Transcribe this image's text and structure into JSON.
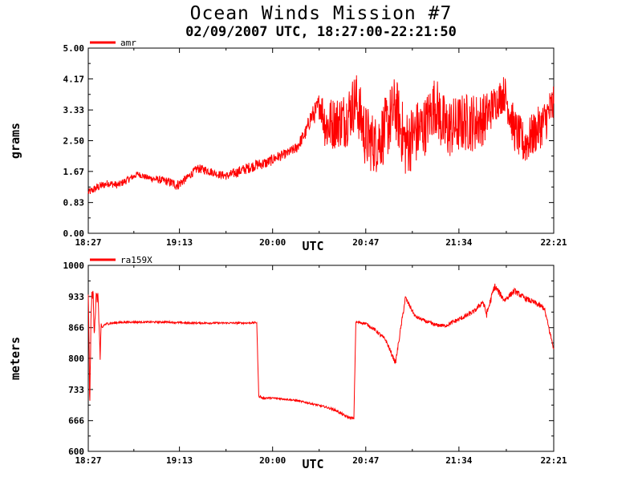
{
  "header": {
    "title": "Ocean Winds Mission #7",
    "subtitle": "02/09/2007  UTC, 18:27:00-22:21:50"
  },
  "colors": {
    "series": "#ff0000",
    "axis": "#000000"
  },
  "chart_data": [
    {
      "type": "line",
      "ylabel": "grams",
      "xlabel": "UTC",
      "xlim": [
        0,
        234.83
      ],
      "ylim": [
        0,
        5
      ],
      "x_ticks": [
        0,
        46,
        93,
        140,
        187,
        234.83
      ],
      "x_tick_labels": [
        "18:27",
        "19:13",
        "20:00",
        "20:47",
        "21:34",
        "22:21"
      ],
      "y_ticks": [
        0,
        0.83,
        1.67,
        2.5,
        3.33,
        4.17,
        5.0
      ],
      "y_tick_labels": [
        "0.00",
        "0.83",
        "1.67",
        "2.50",
        "3.33",
        "4.17",
        "5.00"
      ],
      "legend": "top-left",
      "series": [
        {
          "name": "amr",
          "x": [
            0,
            5,
            10,
            15,
            20,
            25,
            30,
            35,
            40,
            45,
            50,
            55,
            60,
            65,
            70,
            75,
            80,
            85,
            90,
            95,
            100,
            105,
            110,
            112,
            115,
            117,
            120,
            125,
            130,
            135,
            140,
            145,
            150,
            155,
            160,
            165,
            170,
            175,
            180,
            185,
            190,
            195,
            200,
            205,
            210,
            215,
            220,
            225,
            230,
            234.83
          ],
          "y": [
            1.1,
            1.25,
            1.35,
            1.3,
            1.45,
            1.6,
            1.5,
            1.45,
            1.4,
            1.3,
            1.5,
            1.75,
            1.7,
            1.6,
            1.55,
            1.65,
            1.75,
            1.85,
            1.9,
            2.05,
            2.15,
            2.3,
            2.75,
            3.1,
            3.3,
            3.5,
            2.9,
            3.0,
            3.1,
            3.6,
            2.6,
            2.4,
            2.8,
            3.4,
            2.4,
            2.7,
            2.9,
            3.5,
            2.8,
            2.9,
            3.0,
            3.0,
            3.1,
            3.5,
            3.8,
            2.8,
            2.4,
            2.7,
            3.0,
            3.5
          ],
          "noise": [
            0.1,
            0.12,
            0.1,
            0.1,
            0.1,
            0.08,
            0.08,
            0.1,
            0.12,
            0.15,
            0.1,
            0.12,
            0.12,
            0.1,
            0.12,
            0.14,
            0.15,
            0.15,
            0.15,
            0.15,
            0.12,
            0.15,
            0.2,
            0.25,
            0.3,
            0.4,
            0.8,
            0.7,
            0.8,
            0.8,
            0.9,
            0.8,
            0.9,
            0.9,
            0.9,
            0.9,
            0.8,
            0.8,
            0.9,
            0.8,
            0.8,
            0.8,
            0.7,
            0.5,
            0.5,
            0.6,
            0.6,
            0.6,
            0.6,
            0.6
          ]
        }
      ]
    },
    {
      "type": "line",
      "ylabel": "meters",
      "xlabel": "UTC",
      "xlim": [
        0,
        234.83
      ],
      "ylim": [
        600,
        1000
      ],
      "x_ticks": [
        0,
        46,
        93,
        140,
        187,
        234.83
      ],
      "x_tick_labels": [
        "18:27",
        "19:13",
        "20:00",
        "20:47",
        "21:34",
        "22:21"
      ],
      "y_ticks": [
        600,
        666,
        733,
        800,
        866,
        933,
        1000
      ],
      "y_tick_labels": [
        "600",
        "666",
        "733",
        "800",
        "866",
        "933",
        "1000"
      ],
      "legend": "top-left",
      "series": [
        {
          "name": "ra159X",
          "x": [
            0,
            0.8,
            1.5,
            2.5,
            3,
            4,
            5,
            6,
            6.5,
            7,
            8,
            10,
            15,
            20,
            30,
            40,
            50,
            60,
            70,
            80,
            85,
            86,
            88,
            90,
            95,
            100,
            105,
            110,
            120,
            125,
            130,
            134,
            135,
            140,
            145,
            150,
            155,
            160,
            165,
            170,
            175,
            180,
            185,
            190,
            195,
            199,
            201,
            205,
            210,
            215,
            220,
            225,
            230,
            234.83
          ],
          "y": [
            940,
            700,
            920,
            940,
            860,
            930,
            930,
            800,
            870,
            865,
            872,
            875,
            877,
            878,
            878,
            878,
            876,
            876,
            876,
            876,
            877,
            720,
            714,
            715,
            714,
            712,
            709,
            705,
            695,
            688,
            675,
            670,
            878,
            875,
            860,
            840,
            790,
            930,
            890,
            880,
            872,
            870,
            880,
            890,
            902,
            922,
            895,
            955,
            925,
            945,
            930,
            920,
            908,
            820
          ],
          "noise": [
            5,
            30,
            20,
            15,
            15,
            15,
            10,
            10,
            5,
            3,
            3,
            3,
            2,
            2,
            2,
            2,
            2,
            2,
            2,
            2,
            2,
            3,
            3,
            2,
            2,
            2,
            2,
            2,
            2,
            3,
            3,
            3,
            3,
            3,
            4,
            4,
            5,
            6,
            4,
            4,
            4,
            4,
            5,
            5,
            5,
            6,
            8,
            8,
            6,
            6,
            6,
            6,
            6,
            6
          ]
        }
      ]
    }
  ]
}
